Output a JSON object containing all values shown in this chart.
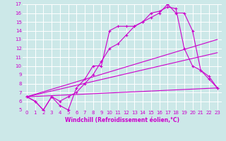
{
  "xlabel": "Windchill (Refroidissement éolien,°C)",
  "xlim": [
    -0.5,
    23.5
  ],
  "ylim": [
    5,
    17
  ],
  "ytick_labels": [
    "5",
    "6",
    "7",
    "8",
    "9",
    "10",
    "11",
    "12",
    "13",
    "14",
    "15",
    "16",
    "17"
  ],
  "ytick_vals": [
    5,
    6,
    7,
    8,
    9,
    10,
    11,
    12,
    13,
    14,
    15,
    16,
    17
  ],
  "xtick_labels": [
    "0",
    "1",
    "2",
    "3",
    "4",
    "5",
    "6",
    "7",
    "8",
    "9",
    "10",
    "11",
    "12",
    "13",
    "14",
    "15",
    "16",
    "17",
    "18",
    "19",
    "20",
    "21",
    "22",
    "23"
  ],
  "xtick_vals": [
    0,
    1,
    2,
    3,
    4,
    5,
    6,
    7,
    8,
    9,
    10,
    11,
    12,
    13,
    14,
    15,
    16,
    17,
    18,
    19,
    20,
    21,
    22,
    23
  ],
  "bg_color": "#cce8e8",
  "line_color": "#cc00cc",
  "grid_color": "#ffffff",
  "line1_x": [
    0,
    1,
    2,
    3,
    4,
    5,
    6,
    7,
    8,
    9,
    10,
    11,
    12,
    13,
    14,
    15,
    16,
    17,
    18,
    19,
    20,
    21,
    22,
    23
  ],
  "line1_y": [
    6.5,
    6.0,
    5.0,
    6.5,
    5.5,
    5.0,
    7.5,
    8.5,
    10.0,
    10.0,
    14.0,
    14.5,
    14.5,
    14.5,
    15.0,
    15.5,
    16.0,
    17.0,
    16.0,
    16.0,
    14.0,
    9.5,
    8.5,
    7.5
  ],
  "line2_x": [
    0,
    1,
    2,
    3,
    4,
    5,
    6,
    7,
    8,
    9,
    10,
    11,
    12,
    13,
    14,
    15,
    16,
    17,
    18,
    19,
    20,
    21,
    22,
    23
  ],
  "line2_y": [
    6.5,
    6.0,
    5.0,
    6.5,
    6.0,
    6.5,
    7.0,
    8.0,
    9.0,
    10.5,
    12.0,
    12.5,
    13.5,
    14.5,
    15.0,
    16.0,
    16.2,
    16.7,
    16.5,
    12.0,
    10.0,
    9.5,
    8.8,
    7.5
  ],
  "line3_x": [
    0,
    23
  ],
  "line3_y": [
    6.5,
    13.0
  ],
  "line4_x": [
    0,
    23
  ],
  "line4_y": [
    6.5,
    7.5
  ],
  "line5_x": [
    0,
    23
  ],
  "line5_y": [
    6.5,
    11.5
  ],
  "tick_fontsize": 5,
  "xlabel_fontsize": 5.5
}
